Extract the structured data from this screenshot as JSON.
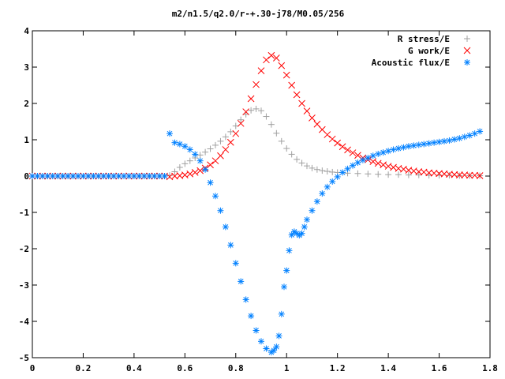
{
  "chart_data": {
    "type": "scatter",
    "title": "m2/n1.5/q2.0/r-+.30-j78/M0.05/256",
    "xlabel": "",
    "ylabel": "",
    "xlim": [
      0,
      1.8
    ],
    "ylim": [
      -5,
      4
    ],
    "grid": false,
    "legend_position": "top-right",
    "x_ticks": [
      "0",
      "0.2",
      "0.4",
      "0.6",
      "0.8",
      "1",
      "1.2",
      "1.4",
      "1.6",
      "1.8"
    ],
    "y_ticks": [
      "-5",
      "-4",
      "-3",
      "-2",
      "-1",
      "0",
      "1",
      "2",
      "3",
      "4"
    ],
    "x_tick_values": [
      0,
      0.2,
      0.4,
      0.6,
      0.8,
      1.0,
      1.2,
      1.4,
      1.6,
      1.8
    ],
    "y_tick_values": [
      -5,
      -4,
      -3,
      -2,
      -1,
      0,
      1,
      2,
      3,
      4
    ],
    "series": [
      {
        "name": "R stress/E",
        "marker": "plus",
        "color": "#a0a0a0",
        "points": [
          [
            0.0,
            0.0
          ],
          [
            0.02,
            0.0
          ],
          [
            0.04,
            0.0
          ],
          [
            0.06,
            0.0
          ],
          [
            0.08,
            0.0
          ],
          [
            0.1,
            0.0
          ],
          [
            0.12,
            0.0
          ],
          [
            0.14,
            0.0
          ],
          [
            0.16,
            0.0
          ],
          [
            0.18,
            0.0
          ],
          [
            0.2,
            0.0
          ],
          [
            0.22,
            0.0
          ],
          [
            0.24,
            0.0
          ],
          [
            0.26,
            0.0
          ],
          [
            0.28,
            0.0
          ],
          [
            0.3,
            0.0
          ],
          [
            0.32,
            0.0
          ],
          [
            0.34,
            0.0
          ],
          [
            0.36,
            0.0
          ],
          [
            0.38,
            0.0
          ],
          [
            0.4,
            0.0
          ],
          [
            0.42,
            0.0
          ],
          [
            0.44,
            0.0
          ],
          [
            0.46,
            0.0
          ],
          [
            0.48,
            0.0
          ],
          [
            0.5,
            0.0
          ],
          [
            0.52,
            0.0
          ],
          [
            0.54,
            0.02
          ],
          [
            0.56,
            0.12
          ],
          [
            0.58,
            0.24
          ],
          [
            0.6,
            0.34
          ],
          [
            0.62,
            0.42
          ],
          [
            0.64,
            0.5
          ],
          [
            0.66,
            0.58
          ],
          [
            0.68,
            0.66
          ],
          [
            0.7,
            0.75
          ],
          [
            0.72,
            0.85
          ],
          [
            0.74,
            0.96
          ],
          [
            0.76,
            1.08
          ],
          [
            0.78,
            1.22
          ],
          [
            0.8,
            1.38
          ],
          [
            0.82,
            1.55
          ],
          [
            0.84,
            1.7
          ],
          [
            0.86,
            1.81
          ],
          [
            0.88,
            1.85
          ],
          [
            0.9,
            1.8
          ],
          [
            0.92,
            1.64
          ],
          [
            0.94,
            1.42
          ],
          [
            0.96,
            1.18
          ],
          [
            0.98,
            0.96
          ],
          [
            1.0,
            0.76
          ],
          [
            1.02,
            0.6
          ],
          [
            1.04,
            0.46
          ],
          [
            1.06,
            0.36
          ],
          [
            1.08,
            0.28
          ],
          [
            1.1,
            0.22
          ],
          [
            1.12,
            0.18
          ],
          [
            1.14,
            0.15
          ],
          [
            1.16,
            0.13
          ],
          [
            1.18,
            0.11
          ],
          [
            1.2,
            0.1
          ],
          [
            1.24,
            0.08
          ],
          [
            1.28,
            0.07
          ],
          [
            1.32,
            0.06
          ],
          [
            1.36,
            0.05
          ],
          [
            1.4,
            0.04
          ],
          [
            1.44,
            0.04
          ],
          [
            1.48,
            0.03
          ],
          [
            1.52,
            0.03
          ],
          [
            1.56,
            0.02
          ],
          [
            1.6,
            0.02
          ],
          [
            1.64,
            0.02
          ],
          [
            1.68,
            0.01
          ],
          [
            1.72,
            0.01
          ],
          [
            1.76,
            0.01
          ]
        ]
      },
      {
        "name": "G work/E",
        "marker": "x",
        "color": "#ff0000",
        "points": [
          [
            0.0,
            0.0
          ],
          [
            0.02,
            0.0
          ],
          [
            0.04,
            0.0
          ],
          [
            0.06,
            0.0
          ],
          [
            0.08,
            0.0
          ],
          [
            0.1,
            0.0
          ],
          [
            0.12,
            0.0
          ],
          [
            0.14,
            0.0
          ],
          [
            0.16,
            0.0
          ],
          [
            0.18,
            0.0
          ],
          [
            0.2,
            0.0
          ],
          [
            0.22,
            0.0
          ],
          [
            0.24,
            0.0
          ],
          [
            0.26,
            0.0
          ],
          [
            0.28,
            0.0
          ],
          [
            0.3,
            0.0
          ],
          [
            0.32,
            0.0
          ],
          [
            0.34,
            0.0
          ],
          [
            0.36,
            0.0
          ],
          [
            0.38,
            0.0
          ],
          [
            0.4,
            0.0
          ],
          [
            0.42,
            0.0
          ],
          [
            0.44,
            0.0
          ],
          [
            0.46,
            0.0
          ],
          [
            0.48,
            0.0
          ],
          [
            0.5,
            0.0
          ],
          [
            0.52,
            0.0
          ],
          [
            0.54,
            -0.02
          ],
          [
            0.56,
            0.0
          ],
          [
            0.58,
            0.01
          ],
          [
            0.6,
            0.03
          ],
          [
            0.62,
            0.06
          ],
          [
            0.64,
            0.1
          ],
          [
            0.66,
            0.15
          ],
          [
            0.68,
            0.22
          ],
          [
            0.7,
            0.31
          ],
          [
            0.72,
            0.42
          ],
          [
            0.74,
            0.56
          ],
          [
            0.76,
            0.73
          ],
          [
            0.78,
            0.93
          ],
          [
            0.8,
            1.17
          ],
          [
            0.82,
            1.45
          ],
          [
            0.84,
            1.77
          ],
          [
            0.86,
            2.13
          ],
          [
            0.88,
            2.52
          ],
          [
            0.9,
            2.9
          ],
          [
            0.92,
            3.2
          ],
          [
            0.94,
            3.32
          ],
          [
            0.96,
            3.25
          ],
          [
            0.98,
            3.04
          ],
          [
            1.0,
            2.78
          ],
          [
            1.02,
            2.5
          ],
          [
            1.04,
            2.24
          ],
          [
            1.06,
            2.0
          ],
          [
            1.08,
            1.79
          ],
          [
            1.1,
            1.6
          ],
          [
            1.12,
            1.43
          ],
          [
            1.14,
            1.28
          ],
          [
            1.16,
            1.14
          ],
          [
            1.18,
            1.02
          ],
          [
            1.2,
            0.91
          ],
          [
            1.22,
            0.81
          ],
          [
            1.24,
            0.72
          ],
          [
            1.26,
            0.64
          ],
          [
            1.28,
            0.57
          ],
          [
            1.3,
            0.5
          ],
          [
            1.32,
            0.45
          ],
          [
            1.34,
            0.4
          ],
          [
            1.36,
            0.35
          ],
          [
            1.38,
            0.31
          ],
          [
            1.4,
            0.27
          ],
          [
            1.42,
            0.24
          ],
          [
            1.44,
            0.21
          ],
          [
            1.46,
            0.19
          ],
          [
            1.48,
            0.16
          ],
          [
            1.5,
            0.14
          ],
          [
            1.52,
            0.12
          ],
          [
            1.54,
            0.11
          ],
          [
            1.56,
            0.09
          ],
          [
            1.58,
            0.08
          ],
          [
            1.6,
            0.07
          ],
          [
            1.62,
            0.06
          ],
          [
            1.64,
            0.05
          ],
          [
            1.66,
            0.04
          ],
          [
            1.68,
            0.03
          ],
          [
            1.7,
            0.03
          ],
          [
            1.72,
            0.02
          ],
          [
            1.74,
            0.02
          ],
          [
            1.76,
            0.01
          ]
        ]
      },
      {
        "name": "Acoustic flux/E",
        "marker": "star",
        "color": "#0080ff",
        "points": [
          [
            0.0,
            0.0
          ],
          [
            0.02,
            0.0
          ],
          [
            0.04,
            0.0
          ],
          [
            0.06,
            0.0
          ],
          [
            0.08,
            0.0
          ],
          [
            0.1,
            0.0
          ],
          [
            0.12,
            0.0
          ],
          [
            0.14,
            0.0
          ],
          [
            0.16,
            0.0
          ],
          [
            0.18,
            0.0
          ],
          [
            0.2,
            0.0
          ],
          [
            0.22,
            0.0
          ],
          [
            0.24,
            0.0
          ],
          [
            0.26,
            0.0
          ],
          [
            0.28,
            0.0
          ],
          [
            0.3,
            0.0
          ],
          [
            0.32,
            0.0
          ],
          [
            0.34,
            0.0
          ],
          [
            0.36,
            0.0
          ],
          [
            0.38,
            0.0
          ],
          [
            0.4,
            0.0
          ],
          [
            0.42,
            0.0
          ],
          [
            0.44,
            0.0
          ],
          [
            0.46,
            0.0
          ],
          [
            0.48,
            0.0
          ],
          [
            0.5,
            0.0
          ],
          [
            0.52,
            0.0
          ],
          [
            0.54,
            1.17
          ],
          [
            0.56,
            0.92
          ],
          [
            0.58,
            0.88
          ],
          [
            0.6,
            0.82
          ],
          [
            0.62,
            0.73
          ],
          [
            0.64,
            0.6
          ],
          [
            0.66,
            0.42
          ],
          [
            0.68,
            0.18
          ],
          [
            0.7,
            -0.18
          ],
          [
            0.72,
            -0.55
          ],
          [
            0.74,
            -0.95
          ],
          [
            0.76,
            -1.4
          ],
          [
            0.78,
            -1.9
          ],
          [
            0.8,
            -2.4
          ],
          [
            0.82,
            -2.9
          ],
          [
            0.84,
            -3.4
          ],
          [
            0.86,
            -3.85
          ],
          [
            0.88,
            -4.25
          ],
          [
            0.9,
            -4.55
          ],
          [
            0.92,
            -4.75
          ],
          [
            0.94,
            -4.85
          ],
          [
            0.95,
            -4.8
          ],
          [
            0.96,
            -4.7
          ],
          [
            0.97,
            -4.4
          ],
          [
            0.98,
            -3.8
          ],
          [
            0.99,
            -3.05
          ],
          [
            1.0,
            -2.6
          ],
          [
            1.01,
            -2.05
          ],
          [
            1.02,
            -1.62
          ],
          [
            1.03,
            -1.53
          ],
          [
            1.04,
            -1.58
          ],
          [
            1.05,
            -1.63
          ],
          [
            1.06,
            -1.58
          ],
          [
            1.07,
            -1.4
          ],
          [
            1.08,
            -1.2
          ],
          [
            1.1,
            -0.95
          ],
          [
            1.12,
            -0.7
          ],
          [
            1.14,
            -0.48
          ],
          [
            1.16,
            -0.3
          ],
          [
            1.18,
            -0.15
          ],
          [
            1.2,
            -0.02
          ],
          [
            1.22,
            0.1
          ],
          [
            1.24,
            0.2
          ],
          [
            1.26,
            0.29
          ],
          [
            1.28,
            0.37
          ],
          [
            1.3,
            0.44
          ],
          [
            1.32,
            0.5
          ],
          [
            1.34,
            0.56
          ],
          [
            1.36,
            0.61
          ],
          [
            1.38,
            0.65
          ],
          [
            1.4,
            0.69
          ],
          [
            1.42,
            0.73
          ],
          [
            1.44,
            0.76
          ],
          [
            1.46,
            0.79
          ],
          [
            1.48,
            0.82
          ],
          [
            1.5,
            0.84
          ],
          [
            1.52,
            0.86
          ],
          [
            1.54,
            0.88
          ],
          [
            1.56,
            0.9
          ],
          [
            1.58,
            0.92
          ],
          [
            1.6,
            0.94
          ],
          [
            1.62,
            0.96
          ],
          [
            1.64,
            0.98
          ],
          [
            1.66,
            1.01
          ],
          [
            1.68,
            1.04
          ],
          [
            1.7,
            1.08
          ],
          [
            1.72,
            1.12
          ],
          [
            1.74,
            1.17
          ],
          [
            1.76,
            1.23
          ]
        ]
      }
    ]
  }
}
